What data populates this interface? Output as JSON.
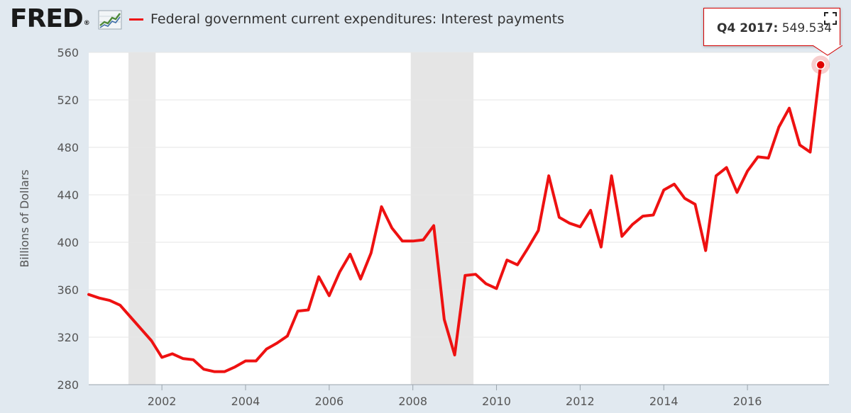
{
  "header": {
    "logo_text": "FRED",
    "logo_reg": "®",
    "logo_icon": "line-graph-icon",
    "legend_label": "Federal government current expenditures: Interest payments",
    "fullscreen_icon": "fullscreen-icon"
  },
  "tooltip": {
    "period": "Q4 2017:",
    "value": "549.534"
  },
  "colors": {
    "line": "#ee1111",
    "recession": "#e5e5e5",
    "background": "#e1e9f0",
    "plot": "#ffffff"
  },
  "chart_data": {
    "type": "line",
    "title": "",
    "ylabel": "Billions of Dollars",
    "xlabel": "",
    "ylim": [
      280,
      560
    ],
    "yticks": [
      280,
      320,
      360,
      400,
      440,
      480,
      520,
      560
    ],
    "xlim": [
      2000.25,
      2017.95
    ],
    "xticks": [
      "2002",
      "2004",
      "2006",
      "2008",
      "2010",
      "2012",
      "2014",
      "2016"
    ],
    "grid": true,
    "legend_position": "top-left",
    "recessions": [
      [
        2001.2,
        2001.85
      ],
      [
        2007.95,
        2009.45
      ]
    ],
    "series": [
      {
        "name": "Federal government current expenditures: Interest payments",
        "x": [
          2000.25,
          2000.5,
          2000.75,
          2001.0,
          2001.25,
          2001.5,
          2001.75,
          2002.0,
          2002.25,
          2002.5,
          2002.75,
          2003.0,
          2003.25,
          2003.5,
          2003.75,
          2004.0,
          2004.25,
          2004.5,
          2004.75,
          2005.0,
          2005.25,
          2005.5,
          2005.75,
          2006.0,
          2006.25,
          2006.5,
          2006.75,
          2007.0,
          2007.25,
          2007.5,
          2007.75,
          2008.0,
          2008.25,
          2008.5,
          2008.75,
          2009.0,
          2009.25,
          2009.5,
          2009.75,
          2010.0,
          2010.25,
          2010.5,
          2010.75,
          2011.0,
          2011.25,
          2011.5,
          2011.75,
          2012.0,
          2012.25,
          2012.5,
          2012.75,
          2013.0,
          2013.25,
          2013.5,
          2013.75,
          2014.0,
          2014.25,
          2014.5,
          2014.75,
          2015.0,
          2015.25,
          2015.5,
          2015.75,
          2016.0,
          2016.25,
          2016.5,
          2016.75,
          2017.0,
          2017.25,
          2017.5,
          2017.75
        ],
        "y": [
          356,
          353,
          351,
          347,
          337,
          327,
          317,
          303,
          306,
          302,
          301,
          293,
          291,
          291,
          295,
          300,
          300,
          310,
          315,
          321,
          342,
          343,
          371,
          355,
          375,
          390,
          369,
          391,
          430,
          412,
          401,
          401,
          402,
          414,
          335,
          305,
          372,
          373,
          365,
          361,
          385,
          381,
          395,
          410,
          456,
          421,
          416,
          413,
          427,
          396,
          456,
          405,
          415,
          422,
          423,
          444,
          449,
          437,
          432,
          393,
          456,
          463,
          442,
          460,
          472,
          471,
          497,
          513,
          482,
          476,
          549.534
        ]
      }
    ]
  }
}
